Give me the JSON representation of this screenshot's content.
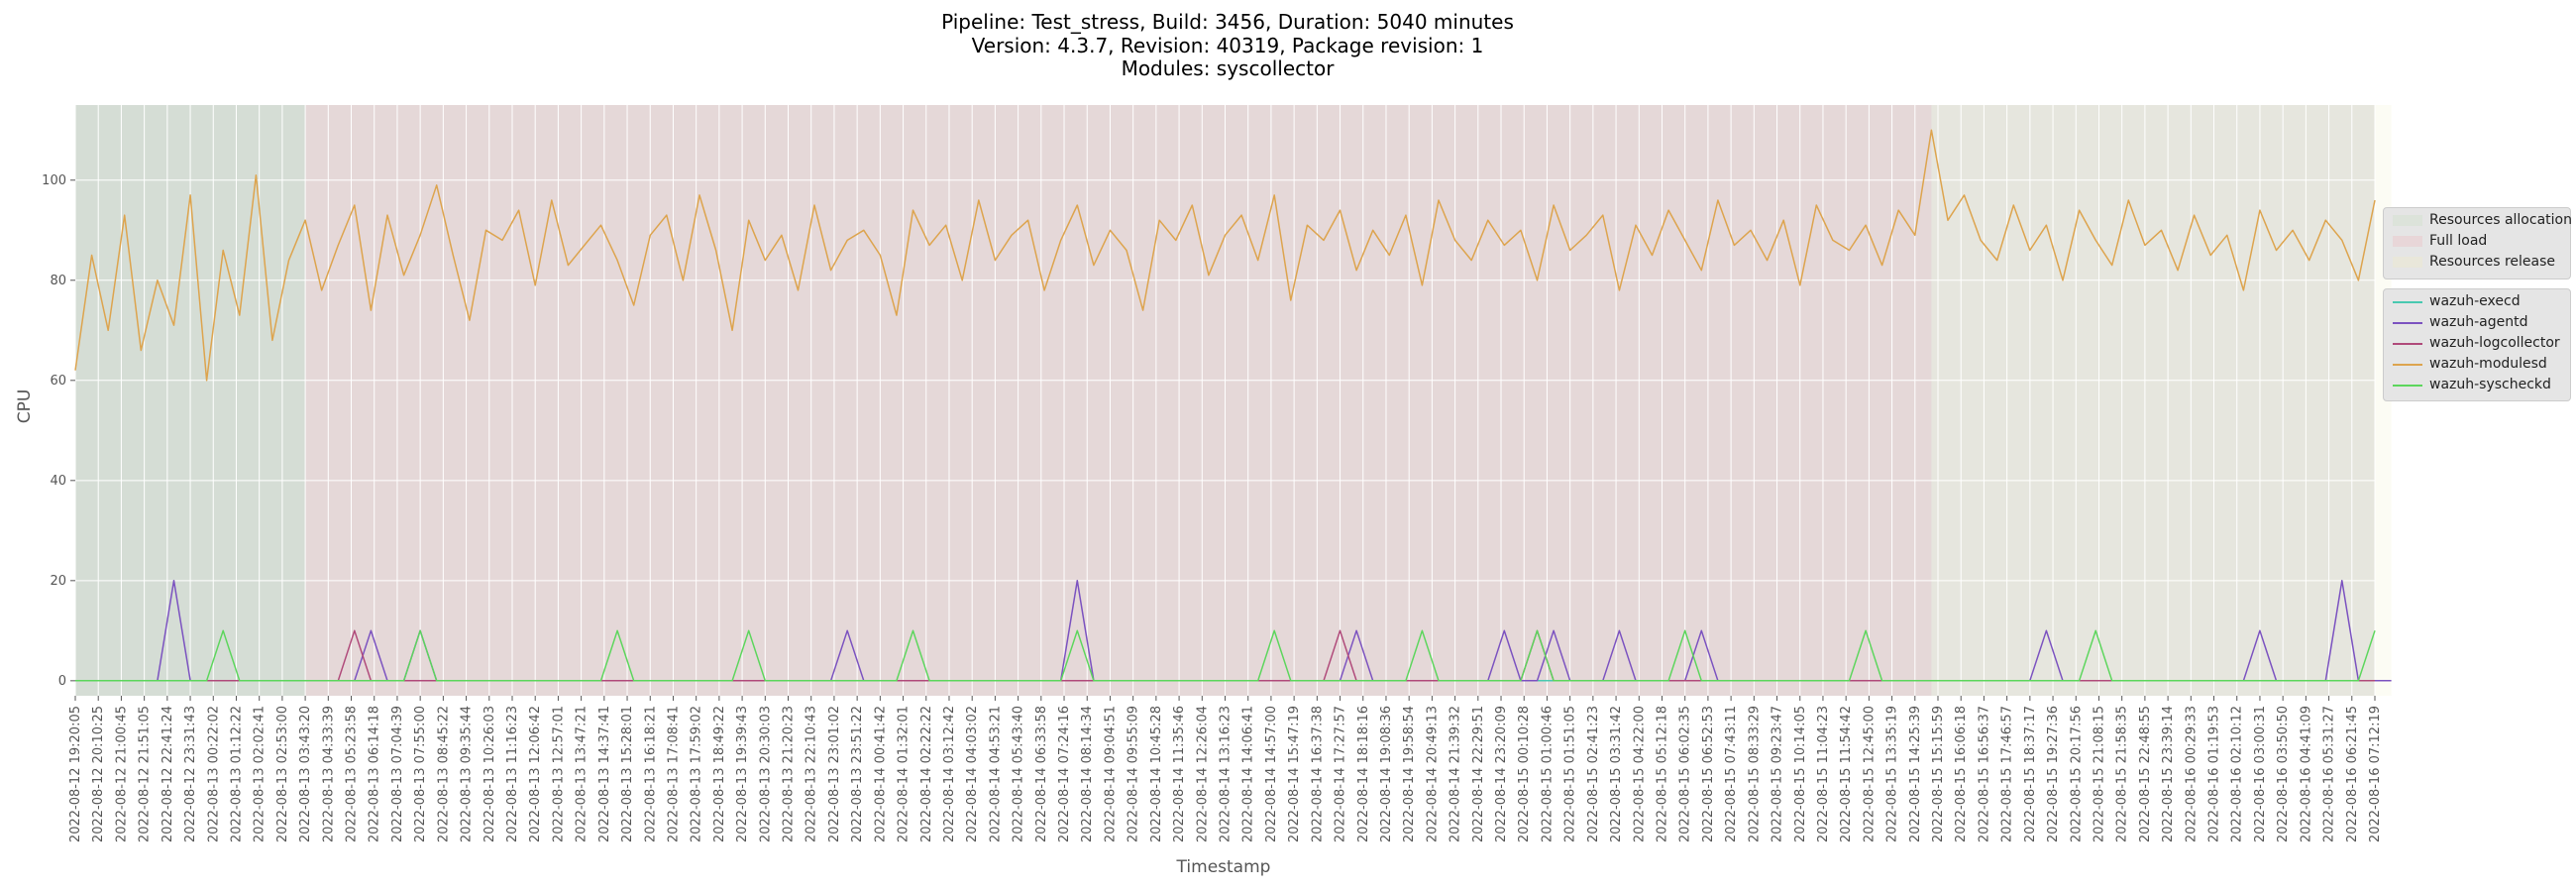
{
  "title": {
    "line1": "Pipeline: Test_stress, Build: 3456, Duration: 5040 minutes",
    "line2": "Version: 4.3.7, Revision: 40319, Package revision: 1",
    "line3": "Modules: syscollector"
  },
  "colors": {
    "plot_bg": "#e5e5e5",
    "grid": "#ffffff",
    "phase_allocation": "#8fbc8f",
    "phase_full_load": "#e8a0a0",
    "phase_release": "#f0ecc0"
  },
  "chart_data": {
    "type": "line",
    "xlabel": "Timestamp",
    "ylabel": "CPU",
    "ylim": [
      -3,
      115
    ],
    "yticks": [
      0,
      20,
      40,
      60,
      80,
      100
    ],
    "grid": true,
    "legend_placement": "right",
    "phases": [
      {
        "name": "Resources allocation",
        "start_index": 0,
        "end_index": 14,
        "color": "#8fbc8f"
      },
      {
        "name": "Full load",
        "start_index": 14,
        "end_index": 113,
        "color": "#e8a0a0"
      },
      {
        "name": "Resources release",
        "start_index": 113,
        "end_index": 141,
        "color": "#f0ecc0"
      }
    ],
    "x_ticks": [
      "2022-08-12 19:20:05",
      "2022-08-12 20:10:25",
      "2022-08-12 21:00:45",
      "2022-08-12 21:51:05",
      "2022-08-12 22:41:24",
      "2022-08-12 23:31:43",
      "2022-08-13 00:22:02",
      "2022-08-13 01:12:22",
      "2022-08-13 02:02:41",
      "2022-08-13 02:53:00",
      "2022-08-13 03:43:20",
      "2022-08-13 04:33:39",
      "2022-08-13 05:23:58",
      "2022-08-13 06:14:18",
      "2022-08-13 07:04:39",
      "2022-08-13 07:55:00",
      "2022-08-13 08:45:22",
      "2022-08-13 09:35:44",
      "2022-08-13 10:26:03",
      "2022-08-13 11:16:23",
      "2022-08-13 12:06:42",
      "2022-08-13 12:57:01",
      "2022-08-13 13:47:21",
      "2022-08-13 14:37:41",
      "2022-08-13 15:28:01",
      "2022-08-13 16:18:21",
      "2022-08-13 17:08:41",
      "2022-08-13 17:59:02",
      "2022-08-13 18:49:22",
      "2022-08-13 19:39:43",
      "2022-08-13 20:30:03",
      "2022-08-13 21:20:23",
      "2022-08-13 22:10:43",
      "2022-08-13 23:01:02",
      "2022-08-13 23:51:22",
      "2022-08-14 00:41:42",
      "2022-08-14 01:32:01",
      "2022-08-14 02:22:22",
      "2022-08-14 03:12:42",
      "2022-08-14 04:03:02",
      "2022-08-14 04:53:21",
      "2022-08-14 05:43:40",
      "2022-08-14 06:33:58",
      "2022-08-14 07:24:16",
      "2022-08-14 08:14:34",
      "2022-08-14 09:04:51",
      "2022-08-14 09:55:09",
      "2022-08-14 10:45:28",
      "2022-08-14 11:35:46",
      "2022-08-14 12:26:04",
      "2022-08-14 13:16:23",
      "2022-08-14 14:06:41",
      "2022-08-14 14:57:00",
      "2022-08-14 15:47:19",
      "2022-08-14 16:37:38",
      "2022-08-14 17:27:57",
      "2022-08-14 18:18:16",
      "2022-08-14 19:08:36",
      "2022-08-14 19:58:54",
      "2022-08-14 20:49:13",
      "2022-08-14 21:39:32",
      "2022-08-14 22:29:51",
      "2022-08-14 23:20:09",
      "2022-08-15 00:10:28",
      "2022-08-15 01:00:46",
      "2022-08-15 01:51:05",
      "2022-08-15 02:41:23",
      "2022-08-15 03:31:42",
      "2022-08-15 04:22:00",
      "2022-08-15 05:12:18",
      "2022-08-15 06:02:35",
      "2022-08-15 06:52:53",
      "2022-08-15 07:43:11",
      "2022-08-15 08:33:29",
      "2022-08-15 09:23:47",
      "2022-08-15 10:14:05",
      "2022-08-15 11:04:23",
      "2022-08-15 11:54:42",
      "2022-08-15 12:45:00",
      "2022-08-15 13:35:19",
      "2022-08-15 14:25:39",
      "2022-08-15 15:15:59",
      "2022-08-15 16:06:18",
      "2022-08-15 16:56:37",
      "2022-08-15 17:46:57",
      "2022-08-15 18:37:17",
      "2022-08-15 19:27:36",
      "2022-08-15 20:17:56",
      "2022-08-15 21:08:15",
      "2022-08-15 21:58:35",
      "2022-08-15 22:48:55",
      "2022-08-15 23:39:14",
      "2022-08-16 00:29:33",
      "2022-08-16 01:19:53",
      "2022-08-16 02:10:12",
      "2022-08-16 03:00:31",
      "2022-08-16 03:50:50",
      "2022-08-16 04:41:09",
      "2022-08-16 05:31:27",
      "2022-08-16 06:21:45",
      "2022-08-16 07:12:19"
    ],
    "series": [
      {
        "name": "wazuh-execd",
        "color": "#48c9b0",
        "values": [
          0,
          0,
          0,
          0,
          0,
          0,
          0,
          0,
          0,
          0,
          0,
          0,
          0,
          0,
          0,
          0,
          0,
          0,
          0,
          0,
          0,
          0,
          0,
          0,
          0,
          0,
          0,
          0,
          0,
          0,
          0,
          0,
          0,
          0,
          0,
          0,
          0,
          0,
          0,
          0,
          0,
          0,
          0,
          0,
          0,
          0,
          0,
          0,
          0,
          0,
          0,
          0,
          0,
          0,
          0,
          0,
          0,
          0,
          0,
          0,
          0,
          0,
          0,
          0,
          0,
          0,
          0,
          0,
          0,
          0,
          0,
          0,
          0,
          0,
          0,
          0,
          0,
          0,
          0,
          0,
          0,
          0,
          0,
          0,
          0,
          0,
          0,
          0,
          0,
          0,
          0,
          0,
          0,
          0,
          0,
          0,
          0,
          0,
          0,
          0,
          0,
          0,
          0,
          0,
          0,
          0,
          0,
          0,
          0,
          0,
          0,
          0,
          0,
          0,
          0,
          0,
          0,
          0,
          0,
          0,
          0,
          0,
          0,
          0,
          0,
          0,
          0,
          0,
          0,
          0,
          0,
          0,
          0,
          0,
          0,
          0,
          0,
          0,
          0,
          0,
          0
        ]
      },
      {
        "name": "wazuh-agentd",
        "color": "#7b52c0",
        "values": [
          0,
          0,
          0,
          0,
          0,
          0,
          20,
          0,
          0,
          0,
          0,
          0,
          0,
          0,
          0,
          0,
          0,
          0,
          10,
          0,
          0,
          10,
          0,
          0,
          0,
          0,
          0,
          0,
          0,
          0,
          0,
          0,
          0,
          0,
          0,
          0,
          0,
          0,
          0,
          0,
          0,
          0,
          0,
          0,
          0,
          0,
          0,
          10,
          0,
          0,
          0,
          0,
          0,
          0,
          0,
          0,
          0,
          0,
          0,
          0,
          0,
          20,
          0,
          0,
          0,
          0,
          0,
          0,
          0,
          0,
          0,
          0,
          0,
          0,
          0,
          0,
          0,
          0,
          10,
          0,
          0,
          0,
          0,
          0,
          0,
          0,
          0,
          10,
          0,
          0,
          10,
          0,
          0,
          0,
          10,
          0,
          0,
          0,
          0,
          10,
          0,
          0,
          0,
          0,
          0,
          0,
          0,
          0,
          0,
          0,
          0,
          0,
          0,
          0,
          0,
          0,
          0,
          0,
          0,
          0,
          10,
          0,
          0,
          0,
          0,
          0,
          0,
          0,
          0,
          0,
          0,
          0,
          0,
          10,
          0,
          0,
          0,
          0,
          20,
          0,
          0,
          0
        ]
      },
      {
        "name": "wazuh-logcollector",
        "color": "#b04a7a",
        "values": [
          0,
          0,
          0,
          0,
          0,
          0,
          0,
          0,
          0,
          0,
          0,
          0,
          0,
          0,
          0,
          0,
          0,
          10,
          0,
          0,
          0,
          0,
          0,
          0,
          0,
          0,
          0,
          0,
          0,
          0,
          0,
          0,
          0,
          0,
          0,
          0,
          0,
          0,
          0,
          0,
          0,
          0,
          0,
          0,
          0,
          0,
          0,
          0,
          0,
          0,
          0,
          0,
          0,
          0,
          0,
          0,
          0,
          0,
          0,
          0,
          0,
          0,
          0,
          0,
          0,
          0,
          0,
          0,
          0,
          0,
          0,
          0,
          0,
          0,
          0,
          0,
          0,
          10,
          0,
          0,
          0,
          0,
          0,
          0,
          0,
          0,
          0,
          0,
          0,
          10,
          0,
          0,
          0,
          0,
          0,
          0,
          0,
          0,
          0,
          0,
          0,
          0,
          0,
          0,
          0,
          0,
          0,
          0,
          0,
          0,
          0,
          0,
          0,
          0,
          0,
          0,
          0,
          0,
          0,
          0,
          0,
          0,
          0,
          0,
          0,
          0,
          0,
          0,
          0,
          0,
          0,
          0,
          0,
          0,
          0,
          0,
          0,
          0,
          0,
          0,
          0
        ]
      },
      {
        "name": "wazuh-modulesd",
        "color": "#dda44e",
        "values": [
          62,
          85,
          70,
          93,
          66,
          80,
          71,
          97,
          60,
          86,
          73,
          101,
          68,
          84,
          92,
          78,
          87,
          95,
          74,
          93,
          81,
          89,
          99,
          85,
          72,
          90,
          88,
          94,
          79,
          96,
          83,
          87,
          91,
          84,
          75,
          89,
          93,
          80,
          97,
          86,
          70,
          92,
          84,
          89,
          78,
          95,
          82,
          88,
          90,
          85,
          73,
          94,
          87,
          91,
          80,
          96,
          84,
          89,
          92,
          78,
          88,
          95,
          83,
          90,
          86,
          74,
          92,
          88,
          95,
          81,
          89,
          93,
          84,
          97,
          76,
          91,
          88,
          94,
          82,
          90,
          85,
          93,
          79,
          96,
          88,
          84,
          92,
          87,
          90,
          80,
          95,
          86,
          89,
          93,
          78,
          91,
          85,
          94,
          88,
          82,
          96,
          87,
          90,
          84,
          92,
          79,
          95,
          88,
          86,
          91,
          83,
          94,
          89,
          110,
          92,
          97,
          88,
          84,
          95,
          86,
          91,
          80,
          94,
          88,
          83,
          96,
          87,
          90,
          82,
          93,
          85,
          89,
          78,
          94,
          86,
          90,
          84,
          92,
          88,
          80,
          96
        ]
      },
      {
        "name": "wazuh-syscheckd",
        "color": "#5cd65c",
        "values": [
          0,
          0,
          0,
          0,
          0,
          0,
          0,
          0,
          0,
          10,
          0,
          0,
          0,
          0,
          0,
          0,
          0,
          0,
          0,
          0,
          0,
          10,
          0,
          0,
          0,
          0,
          0,
          0,
          0,
          0,
          0,
          0,
          0,
          10,
          0,
          0,
          0,
          0,
          0,
          0,
          0,
          10,
          0,
          0,
          0,
          0,
          0,
          0,
          0,
          0,
          0,
          10,
          0,
          0,
          0,
          0,
          0,
          0,
          0,
          0,
          0,
          10,
          0,
          0,
          0,
          0,
          0,
          0,
          0,
          0,
          0,
          0,
          0,
          10,
          0,
          0,
          0,
          0,
          0,
          0,
          0,
          0,
          10,
          0,
          0,
          0,
          0,
          0,
          0,
          10,
          0,
          0,
          0,
          0,
          0,
          0,
          0,
          0,
          10,
          0,
          0,
          0,
          0,
          0,
          0,
          0,
          0,
          0,
          0,
          10,
          0,
          0,
          0,
          0,
          0,
          0,
          0,
          0,
          0,
          0,
          0,
          0,
          0,
          10,
          0,
          0,
          0,
          0,
          0,
          0,
          0,
          0,
          0,
          0,
          0,
          0,
          0,
          0,
          0,
          0,
          10
        ]
      }
    ]
  },
  "legend": {
    "phases": [
      "Resources allocation",
      "Full load",
      "Resources release"
    ],
    "series": [
      "wazuh-execd",
      "wazuh-agentd",
      "wazuh-logcollector",
      "wazuh-modulesd",
      "wazuh-syscheckd"
    ]
  }
}
